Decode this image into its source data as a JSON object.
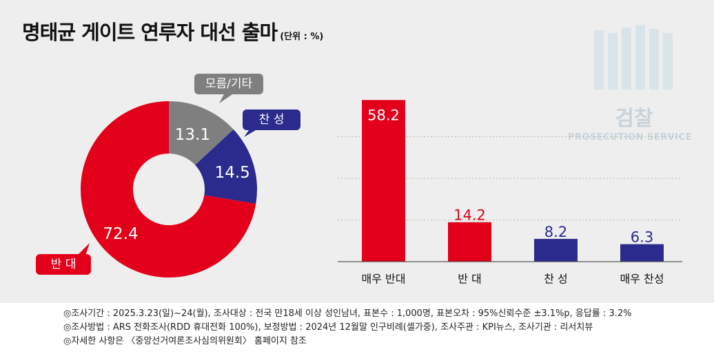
{
  "title": "명태균 게이트 연루자 대선 출마",
  "unit": "(단위 : %)",
  "watermark": {
    "name": "검찰",
    "subtitle": "PROSECUTION SERVICE"
  },
  "colors": {
    "red": "#e2001a",
    "navy": "#2b2a8d",
    "gray": "#7f7f7f",
    "panel": "#eeeeee"
  },
  "chart_data": [
    {
      "type": "pie",
      "donut": true,
      "slices": [
        {
          "label": "반 대",
          "value": 72.4,
          "color": "#e2001a"
        },
        {
          "label": "찬 성",
          "value": 14.5,
          "color": "#2b2a8d"
        },
        {
          "label": "모름/기타",
          "value": 13.1,
          "color": "#7f7f7f"
        }
      ]
    },
    {
      "type": "bar",
      "categories": [
        "매우 반대",
        "반 대",
        "찬 성",
        "매우 찬성"
      ],
      "values": [
        58.2,
        14.2,
        8.2,
        6.3
      ],
      "colors": [
        "#e2001a",
        "#e2001a",
        "#2b2a8d",
        "#2b2a8d"
      ],
      "ylim": [
        0,
        60
      ],
      "grid": true
    }
  ],
  "notes": [
    "◎조사기간 : 2025.3.23(일)~24(월), 조사대상 : 전국 만18세 이상 성인남녀, 표본수 : 1,000명, 표본오차 : 95%신뢰수준 ±3.1%p, 응답률 : 3.2%",
    "◎조사방법 : ARS 전화조사(RDD 휴대전화 100%), 보정방법 : 2024년 12월말 인구비례(셀가중), 조사주관 : KPI뉴스, 조사기관 : 리서치뷰",
    "◎자세한 사항은 〈중앙선거여론조사심의위원회〉 홈페이지 참조"
  ]
}
